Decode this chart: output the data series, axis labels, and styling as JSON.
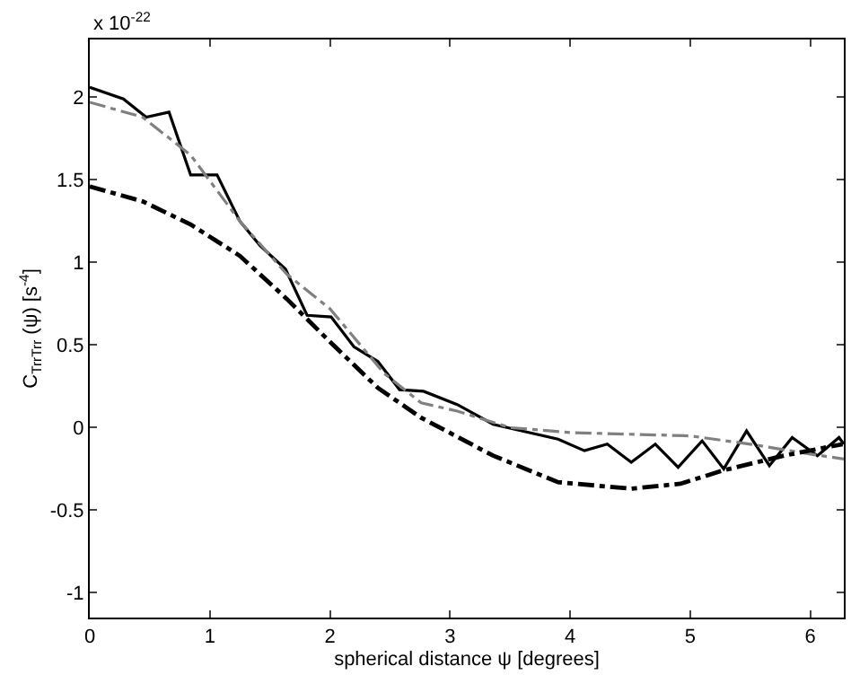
{
  "chart_data": {
    "type": "line",
    "xlabel": "spherical distance ψ [degrees]",
    "ylabel": "C$_{TrrTrr}$ (ψ) [s$^{-4}$]",
    "annotations": [
      "x 10$^{-22}$"
    ],
    "xlim": [
      0,
      6.28
    ],
    "xticks": [
      0,
      1,
      2,
      3,
      4,
      5,
      6
    ],
    "ylim": [
      -1.15,
      2.35
    ],
    "yticks": [
      -1,
      -0.5,
      0,
      0.5,
      1,
      1.5,
      2
    ],
    "series": [
      {
        "color": "#000000",
        "line_style": "solid",
        "x": [
          0,
          0.28,
          0.47,
          0.66,
          0.84,
          1.06,
          1.25,
          1.42,
          1.63,
          1.81,
          2.01,
          2.2,
          2.4,
          2.58,
          2.78,
          3.06,
          3.36,
          3.9,
          4.12,
          4.31,
          4.51,
          4.71,
          4.9,
          5.1,
          5.28,
          5.47,
          5.66,
          5.85,
          6.06,
          6.24,
          6.28
        ],
        "values": [
          2.06,
          1.99,
          1.88,
          1.91,
          1.53,
          1.53,
          1.25,
          1.1,
          0.96,
          0.68,
          0.67,
          0.49,
          0.4,
          0.23,
          0.22,
          0.14,
          0.02,
          -0.07,
          -0.14,
          -0.1,
          -0.21,
          -0.1,
          -0.24,
          -0.08,
          -0.25,
          -0.02,
          -0.23,
          -0.06,
          -0.17,
          -0.06,
          -0.1
        ]
      },
      {
        "color": "#808080",
        "line_style": "dashdot",
        "x": [
          0,
          0.44,
          0.84,
          1.25,
          1.64,
          2.0,
          2.45,
          2.76,
          3.06,
          3.5,
          4.0,
          5.0,
          5.5,
          6.0,
          6.28
        ],
        "values": [
          1.97,
          1.88,
          1.65,
          1.25,
          0.93,
          0.72,
          0.33,
          0.15,
          0.1,
          0.0,
          -0.03,
          -0.05,
          -0.1,
          -0.16,
          -0.19
        ]
      },
      {
        "color": "#000000",
        "line_style": "dashdot",
        "x": [
          0,
          0.44,
          0.84,
          1.25,
          1.64,
          2.0,
          2.4,
          2.76,
          3.36,
          3.9,
          4.51,
          4.92,
          5.27,
          5.78,
          6.27
        ],
        "values": [
          1.46,
          1.37,
          1.23,
          1.04,
          0.78,
          0.52,
          0.24,
          0.06,
          -0.17,
          -0.33,
          -0.37,
          -0.34,
          -0.26,
          -0.17,
          -0.1
        ]
      }
    ]
  }
}
